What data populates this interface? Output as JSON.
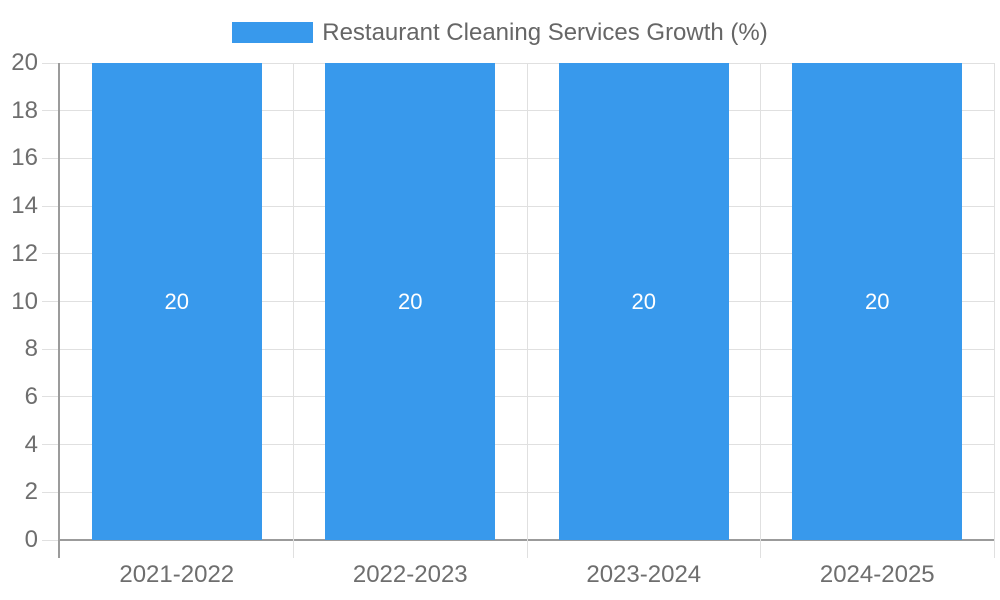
{
  "chart_data": {
    "type": "bar",
    "title": "",
    "legend": "Restaurant Cleaning Services Growth (%)",
    "legend_position": "top-center",
    "categories": [
      "2021-2022",
      "2022-2023",
      "2023-2024",
      "2024-2025"
    ],
    "values": [
      20,
      20,
      20,
      20
    ],
    "bar_labels": [
      "20",
      "20",
      "20",
      "20"
    ],
    "y_ticks": [
      "0",
      "2",
      "4",
      "6",
      "8",
      "10",
      "12",
      "14",
      "16",
      "18",
      "20"
    ],
    "ylim": [
      0,
      20
    ],
    "xlabel": "",
    "ylabel": "",
    "grid": true,
    "colors": {
      "bar": "#3899EC",
      "bar_label": "#FFFFFF",
      "axis_text": "#6E6E6E",
      "grid_line": "#E0E0E0",
      "axis_line": "#9B9B9B",
      "background": "#FFFFFF"
    }
  }
}
